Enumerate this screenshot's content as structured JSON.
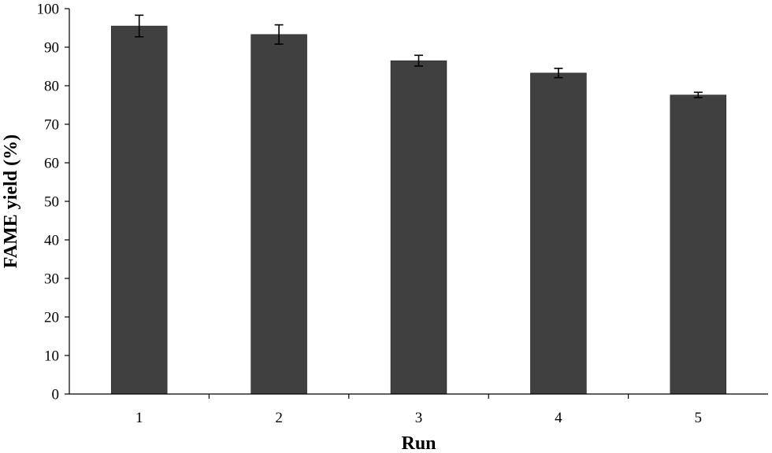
{
  "chart_data": {
    "type": "bar",
    "title": "",
    "xlabel": "Run",
    "ylabel": "FAME yield (%)",
    "categories": [
      "1",
      "2",
      "3",
      "4",
      "5"
    ],
    "series": [
      {
        "values": [
          95.5,
          93.3,
          86.5,
          83.3,
          77.6
        ],
        "error": [
          2.8,
          2.5,
          1.4,
          1.2,
          0.7
        ],
        "color": "#404040"
      }
    ],
    "ylim": [
      0,
      100
    ],
    "yticks": [
      "0",
      "10",
      "20",
      "30",
      "40",
      "50",
      "60",
      "70",
      "80",
      "90",
      "100"
    ],
    "grid": false,
    "legend": "none"
  }
}
